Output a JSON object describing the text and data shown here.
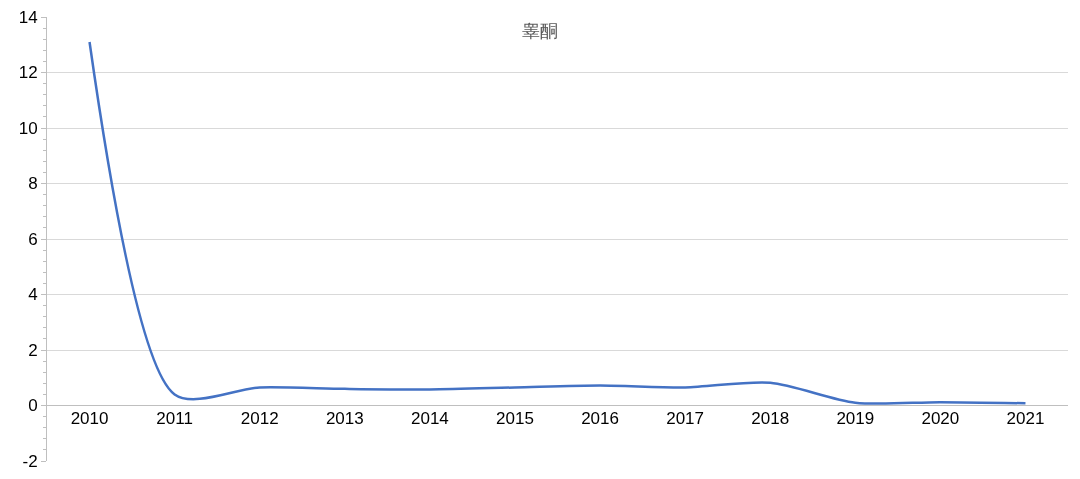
{
  "chart_data": {
    "type": "line",
    "title": "睾酮",
    "categories": [
      "2010",
      "2011",
      "2012",
      "2013",
      "2014",
      "2015",
      "2016",
      "2017",
      "2018",
      "2019",
      "2020",
      "2021"
    ],
    "series": [
      {
        "color": "#4472c4",
        "values": [
          13.1,
          0.4,
          0.65,
          0.6,
          0.58,
          0.65,
          0.72,
          0.65,
          0.82,
          0.1,
          0.12,
          0.08
        ]
      }
    ],
    "ylim": [
      -2,
      14
    ],
    "yticks": [
      -2,
      0,
      2,
      4,
      6,
      8,
      10,
      12,
      14
    ],
    "grid": "y",
    "marker": "none",
    "line_style": "solid"
  }
}
